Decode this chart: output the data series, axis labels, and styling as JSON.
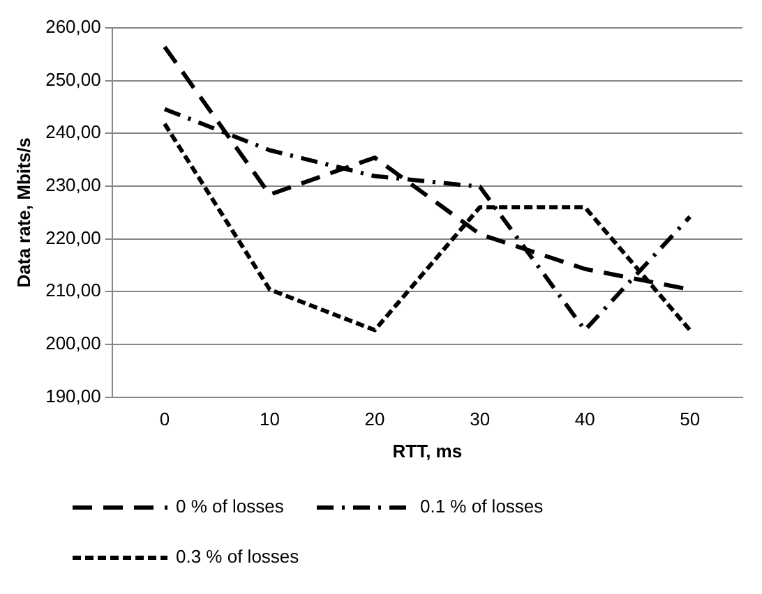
{
  "chart_data": {
    "type": "line",
    "xlabel": "RTT, ms",
    "ylabel": "Data rate, Mbits/s",
    "categories": [
      "0",
      "10",
      "20",
      "30",
      "40",
      "50"
    ],
    "series": [
      {
        "name": "0 % of losses",
        "color": "#000000",
        "line_style": "dashed",
        "values": [
          256.4,
          228.4,
          235.4,
          220.9,
          214.3,
          210.4
        ]
      },
      {
        "name": "0.1 % of losses",
        "color": "#000000",
        "line_style": "dashdot",
        "values": [
          244.6,
          236.8,
          231.9,
          229.9,
          202.7,
          224.2
        ]
      },
      {
        "name": "0.3 % of losses",
        "color": "#000000",
        "line_style": "dotted",
        "values": [
          241.8,
          210.4,
          202.7,
          226,
          226,
          202.7
        ]
      }
    ],
    "ylim": [
      190,
      260
    ],
    "yticks": [
      {
        "value": 190,
        "label": "190,00"
      },
      {
        "value": 200,
        "label": "200,00"
      },
      {
        "value": 210,
        "label": "210,00"
      },
      {
        "value": 220,
        "label": "220,00"
      },
      {
        "value": 230,
        "label": "230,00"
      },
      {
        "value": 240,
        "label": "240,00"
      },
      {
        "value": 250,
        "label": "250,00"
      },
      {
        "value": 260,
        "label": "260,00"
      }
    ],
    "grid": "y",
    "legend": "bottom",
    "marker": "none"
  }
}
